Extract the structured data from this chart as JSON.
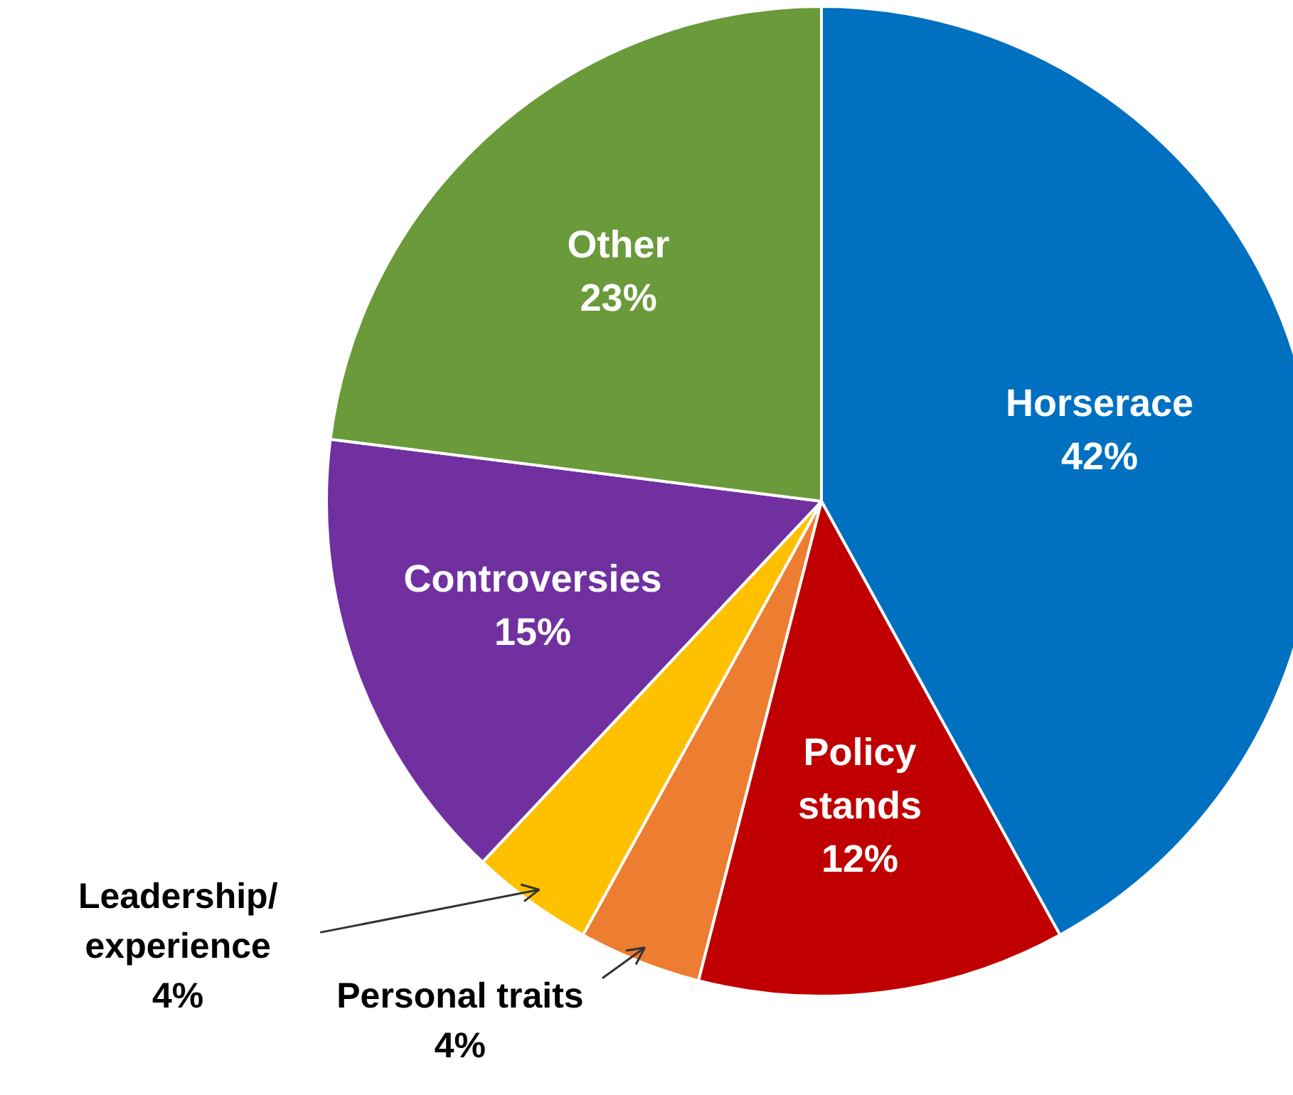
{
  "chart_data": {
    "type": "pie",
    "categories": [
      "Horserace",
      "Policy stands",
      "Personal traits",
      "Leadership/experience",
      "Controversies",
      "Other"
    ],
    "values": [
      42,
      12,
      4,
      4,
      15,
      23
    ],
    "value_labels": [
      "42%",
      "12%",
      "4%",
      "4%",
      "15%",
      "23%"
    ],
    "colors": [
      "#0070c0",
      "#c00000",
      "#ed7d31",
      "#ffc000",
      "#7030a0",
      "#6a9a3a"
    ],
    "legend": false
  }
}
